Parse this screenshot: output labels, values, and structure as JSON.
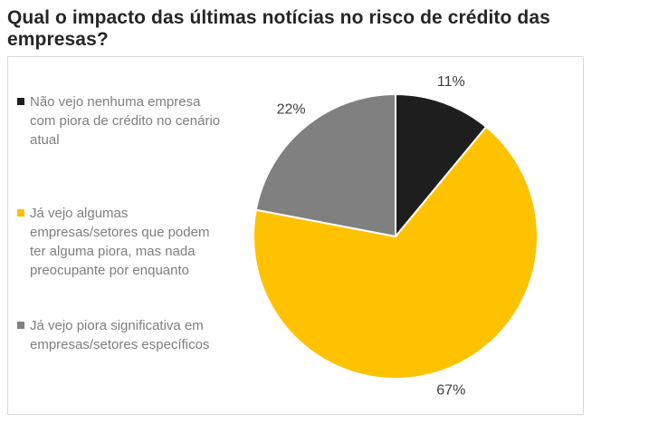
{
  "page": {
    "title": "Qual o impacto das últimas notícias no risco de crédito das empresas?"
  },
  "chart_data": {
    "type": "pie",
    "title": "Qual o impacto das últimas notícias no risco de crédito das empresas?",
    "legend_position": "left",
    "start_angle_deg": 0,
    "direction": "clockwise",
    "slices": [
      {
        "label": "Não vejo nenhuma empresa com piora de crédito no cenário atual",
        "value": 11,
        "display": "11%",
        "color": "#1e1e1e"
      },
      {
        "label": "Já vejo algumas empresas/setores que podem ter alguma piora, mas nada preocupante por enquanto",
        "value": 67,
        "display": "67%",
        "color": "#ffc200"
      },
      {
        "label": "Já vejo piora significativa em empresas/setores específicos",
        "value": 22,
        "display": "22%",
        "color": "#808080"
      }
    ],
    "colors": {
      "label_text": "#404040",
      "legend_text": "#7f7f7f",
      "title_text": "#262626",
      "box_border": "#d9d9d9",
      "slice_stroke": "#ffffff"
    }
  }
}
